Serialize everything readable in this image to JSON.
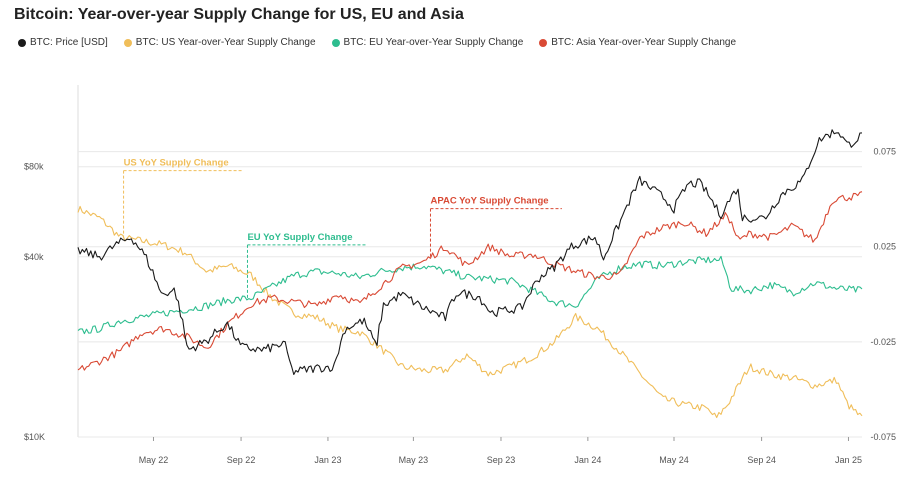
{
  "chart_data": {
    "type": "line",
    "title": "Bitcoin: Year-over-year Supply Change for US, EU and Asia",
    "x_range": [
      "2022-01-15",
      "2025-01-20"
    ],
    "x_ticks": [
      {
        "date": "2022-05-01",
        "label": "May 22"
      },
      {
        "date": "2022-09-01",
        "label": "Sep 22"
      },
      {
        "date": "2023-01-01",
        "label": "Jan 23"
      },
      {
        "date": "2023-05-01",
        "label": "May 23"
      },
      {
        "date": "2023-09-01",
        "label": "Sep 23"
      },
      {
        "date": "2024-01-01",
        "label": "Jan 24"
      },
      {
        "date": "2024-05-01",
        "label": "May 24"
      },
      {
        "date": "2024-09-01",
        "label": "Sep 24"
      },
      {
        "date": "2025-01-01",
        "label": "Jan 25"
      }
    ],
    "y_left": {
      "scale": "log",
      "range": [
        10000,
        150000
      ],
      "ticks": [
        {
          "value": 10000,
          "label": "$10K"
        },
        {
          "value": 40000,
          "label": "$40k"
        },
        {
          "value": 80000,
          "label": "$80k"
        }
      ]
    },
    "y_right": {
      "scale": "linear",
      "range": [
        -0.075,
        0.11
      ],
      "ticks": [
        {
          "value": -0.075,
          "label": "-0.075"
        },
        {
          "value": -0.025,
          "label": "-0.025"
        },
        {
          "value": 0.025,
          "label": "0.025"
        },
        {
          "value": 0.075,
          "label": "0.075"
        }
      ]
    },
    "grid": true,
    "legend_position": "top-left",
    "series": [
      {
        "name": "BTC: Price [USD]",
        "axis": "left",
        "color": "#1a1a1a",
        "points": [
          [
            "2022-01-15",
            42000
          ],
          [
            "2022-02-15",
            40000
          ],
          [
            "2022-03-10",
            44000
          ],
          [
            "2022-03-31",
            46500
          ],
          [
            "2022-04-20",
            40000
          ],
          [
            "2022-05-12",
            30000
          ],
          [
            "2022-05-31",
            31000
          ],
          [
            "2022-06-18",
            19500
          ],
          [
            "2022-07-15",
            21000
          ],
          [
            "2022-08-12",
            24000
          ],
          [
            "2022-09-01",
            20000
          ],
          [
            "2022-10-01",
            19500
          ],
          [
            "2022-11-01",
            20500
          ],
          [
            "2022-11-12",
            16500
          ],
          [
            "2022-12-15",
            17000
          ],
          [
            "2023-01-10",
            17200
          ],
          [
            "2023-01-25",
            23000
          ],
          [
            "2023-02-20",
            24500
          ],
          [
            "2023-03-10",
            20000
          ],
          [
            "2023-03-20",
            27500
          ],
          [
            "2023-04-14",
            30000
          ],
          [
            "2023-05-15",
            27000
          ],
          [
            "2023-06-15",
            25000
          ],
          [
            "2023-07-01",
            30500
          ],
          [
            "2023-08-01",
            29500
          ],
          [
            "2023-08-18",
            26000
          ],
          [
            "2023-09-30",
            27000
          ],
          [
            "2023-10-24",
            34000
          ],
          [
            "2023-11-15",
            37000
          ],
          [
            "2023-12-10",
            43500
          ],
          [
            "2024-01-11",
            46500
          ],
          [
            "2024-01-23",
            39500
          ],
          [
            "2024-02-15",
            52000
          ],
          [
            "2024-03-14",
            72000
          ],
          [
            "2024-04-15",
            63500
          ],
          [
            "2024-05-01",
            58000
          ],
          [
            "2024-05-21",
            70000
          ],
          [
            "2024-06-07",
            70500
          ],
          [
            "2024-07-05",
            55000
          ],
          [
            "2024-07-29",
            68000
          ],
          [
            "2024-08-05",
            54000
          ],
          [
            "2024-09-06",
            54000
          ],
          [
            "2024-09-30",
            65000
          ],
          [
            "2024-10-29",
            72000
          ],
          [
            "2024-11-22",
            99000
          ],
          [
            "2024-12-17",
            106000
          ],
          [
            "2024-12-31",
            94000
          ],
          [
            "2025-01-20",
            102000
          ]
        ]
      },
      {
        "name": "BTC: US Year-over-Year Supply Change",
        "axis": "right",
        "color": "#f0be5a",
        "points": [
          [
            "2022-01-15",
            0.045
          ],
          [
            "2022-02-15",
            0.04
          ],
          [
            "2022-03-15",
            0.03
          ],
          [
            "2022-04-15",
            0.028
          ],
          [
            "2022-05-15",
            0.026
          ],
          [
            "2022-06-15",
            0.022
          ],
          [
            "2022-07-15",
            0.012
          ],
          [
            "2022-08-15",
            0.015
          ],
          [
            "2022-09-15",
            0.01
          ],
          [
            "2022-10-15",
            -0.002
          ],
          [
            "2022-11-15",
            -0.01
          ],
          [
            "2022-12-15",
            -0.012
          ],
          [
            "2023-01-15",
            -0.018
          ],
          [
            "2023-02-15",
            -0.02
          ],
          [
            "2023-03-15",
            -0.028
          ],
          [
            "2023-04-15",
            -0.038
          ],
          [
            "2023-05-15",
            -0.04
          ],
          [
            "2023-06-15",
            -0.04
          ],
          [
            "2023-07-15",
            -0.032
          ],
          [
            "2023-08-15",
            -0.042
          ],
          [
            "2023-09-15",
            -0.038
          ],
          [
            "2023-10-15",
            -0.033
          ],
          [
            "2023-11-15",
            -0.025
          ],
          [
            "2023-12-15",
            -0.012
          ],
          [
            "2024-01-15",
            -0.018
          ],
          [
            "2024-02-15",
            -0.03
          ],
          [
            "2024-03-15",
            -0.042
          ],
          [
            "2024-04-15",
            -0.055
          ],
          [
            "2024-05-15",
            -0.058
          ],
          [
            "2024-06-15",
            -0.06
          ],
          [
            "2024-06-30",
            -0.065
          ],
          [
            "2024-07-15",
            -0.058
          ],
          [
            "2024-08-15",
            -0.038
          ],
          [
            "2024-09-15",
            -0.042
          ],
          [
            "2024-10-15",
            -0.044
          ],
          [
            "2024-11-15",
            -0.048
          ],
          [
            "2024-12-15",
            -0.045
          ],
          [
            "2024-12-31",
            -0.058
          ],
          [
            "2025-01-20",
            -0.065
          ]
        ]
      },
      {
        "name": "BTC: EU Year-over-Year Supply Change",
        "axis": "right",
        "color": "#2ebd8f",
        "points": [
          [
            "2022-01-15",
            -0.02
          ],
          [
            "2022-02-15",
            -0.018
          ],
          [
            "2022-03-15",
            -0.014
          ],
          [
            "2022-04-15",
            -0.012
          ],
          [
            "2022-05-15",
            -0.01
          ],
          [
            "2022-06-15",
            -0.008
          ],
          [
            "2022-07-15",
            -0.006
          ],
          [
            "2022-08-15",
            -0.003
          ],
          [
            "2022-09-15",
            -0.002
          ],
          [
            "2022-10-15",
            0.004
          ],
          [
            "2022-11-15",
            0.01
          ],
          [
            "2022-12-15",
            0.012
          ],
          [
            "2023-01-15",
            0.011
          ],
          [
            "2023-02-15",
            0.009
          ],
          [
            "2023-03-15",
            0.012
          ],
          [
            "2023-04-15",
            0.014
          ],
          [
            "2023-05-15",
            0.015
          ],
          [
            "2023-06-15",
            0.012
          ],
          [
            "2023-07-15",
            0.009
          ],
          [
            "2023-08-15",
            0.008
          ],
          [
            "2023-09-15",
            0.007
          ],
          [
            "2023-10-15",
            0.002
          ],
          [
            "2023-11-15",
            -0.004
          ],
          [
            "2023-12-15",
            -0.006
          ],
          [
            "2024-01-15",
            0.008
          ],
          [
            "2024-02-15",
            0.014
          ],
          [
            "2024-03-15",
            0.016
          ],
          [
            "2024-04-15",
            0.015
          ],
          [
            "2024-05-15",
            0.017
          ],
          [
            "2024-06-15",
            0.018
          ],
          [
            "2024-07-07",
            0.018
          ],
          [
            "2024-07-20",
            0.003
          ],
          [
            "2024-08-15",
            0.002
          ],
          [
            "2024-09-15",
            0.005
          ],
          [
            "2024-10-15",
            0.001
          ],
          [
            "2024-11-15",
            0.006
          ],
          [
            "2024-12-15",
            0.003
          ],
          [
            "2025-01-20",
            0.002
          ]
        ]
      },
      {
        "name": "BTC: Asia Year-over-Year Supply Change",
        "axis": "right",
        "color": "#d94a35",
        "points": [
          [
            "2022-01-15",
            -0.04
          ],
          [
            "2022-02-15",
            -0.035
          ],
          [
            "2022-03-15",
            -0.03
          ],
          [
            "2022-04-15",
            -0.02
          ],
          [
            "2022-05-15",
            -0.018
          ],
          [
            "2022-06-15",
            -0.022
          ],
          [
            "2022-07-15",
            -0.028
          ],
          [
            "2022-08-15",
            -0.015
          ],
          [
            "2022-09-15",
            -0.005
          ],
          [
            "2022-10-15",
            -0.002
          ],
          [
            "2022-11-15",
            -0.004
          ],
          [
            "2022-12-15",
            -0.006
          ],
          [
            "2023-01-15",
            0.0
          ],
          [
            "2023-02-15",
            -0.005
          ],
          [
            "2023-03-15",
            0.004
          ],
          [
            "2023-04-15",
            0.014
          ],
          [
            "2023-05-15",
            0.017
          ],
          [
            "2023-06-15",
            0.025
          ],
          [
            "2023-07-15",
            0.015
          ],
          [
            "2023-08-15",
            0.025
          ],
          [
            "2023-09-15",
            0.02
          ],
          [
            "2023-10-15",
            0.021
          ],
          [
            "2023-11-15",
            0.016
          ],
          [
            "2023-12-15",
            0.012
          ],
          [
            "2024-01-15",
            0.009
          ],
          [
            "2024-02-15",
            0.01
          ],
          [
            "2024-03-15",
            0.03
          ],
          [
            "2024-04-15",
            0.035
          ],
          [
            "2024-05-15",
            0.038
          ],
          [
            "2024-06-15",
            0.032
          ],
          [
            "2024-07-15",
            0.042
          ],
          [
            "2024-07-31",
            0.028
          ],
          [
            "2024-08-15",
            0.032
          ],
          [
            "2024-09-15",
            0.03
          ],
          [
            "2024-10-15",
            0.036
          ],
          [
            "2024-11-15",
            0.028
          ],
          [
            "2024-12-10",
            0.05
          ],
          [
            "2025-01-20",
            0.052
          ]
        ]
      }
    ],
    "annotations": [
      {
        "text": "US YoY Supply Change",
        "series": 1,
        "date": "2022-03-20",
        "value": 0.065,
        "color": "#f0be5a"
      },
      {
        "text": "EU YoY Supply Change",
        "series": 2,
        "date": "2022-09-10",
        "value": 0.026,
        "color": "#2ebd8f"
      },
      {
        "text": "APAC YoY Supply Change",
        "series": 3,
        "date": "2023-05-25",
        "value": 0.045,
        "color": "#d94a35"
      }
    ]
  }
}
